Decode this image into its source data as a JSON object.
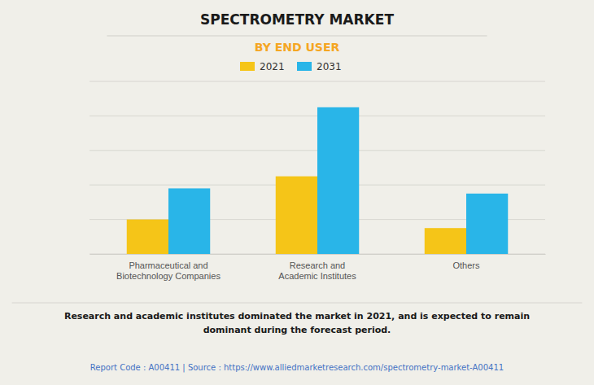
{
  "chart_data": {
    "type": "bar",
    "title": "SPECTROMETRY MARKET",
    "subtitle": "BY END USER",
    "categories": [
      "Pharmaceutical and\nBiotechnology Companies",
      "Research and\nAcademic Institutes",
      "Others"
    ],
    "series": [
      {
        "name": "2021",
        "color": "#F5C518",
        "values": [
          2.0,
          4.5,
          1.5
        ]
      },
      {
        "name": "2031",
        "color": "#29B5E8",
        "values": [
          3.8,
          8.5,
          3.5
        ]
      }
    ],
    "ylim": [
      0,
      10
    ],
    "yticks": [
      0,
      2,
      4,
      6,
      8,
      10
    ],
    "grid": true,
    "legend": "top",
    "tick_labels": "x",
    "annotations": [
      "Research and academic institutes dominated the market in 2021, and is expected to remain\ndominant during the forecast period.",
      "Report Code : A00411  |  Source : https://www.alliedmarketresearch.com/spectrometry-market-A00411"
    ]
  }
}
